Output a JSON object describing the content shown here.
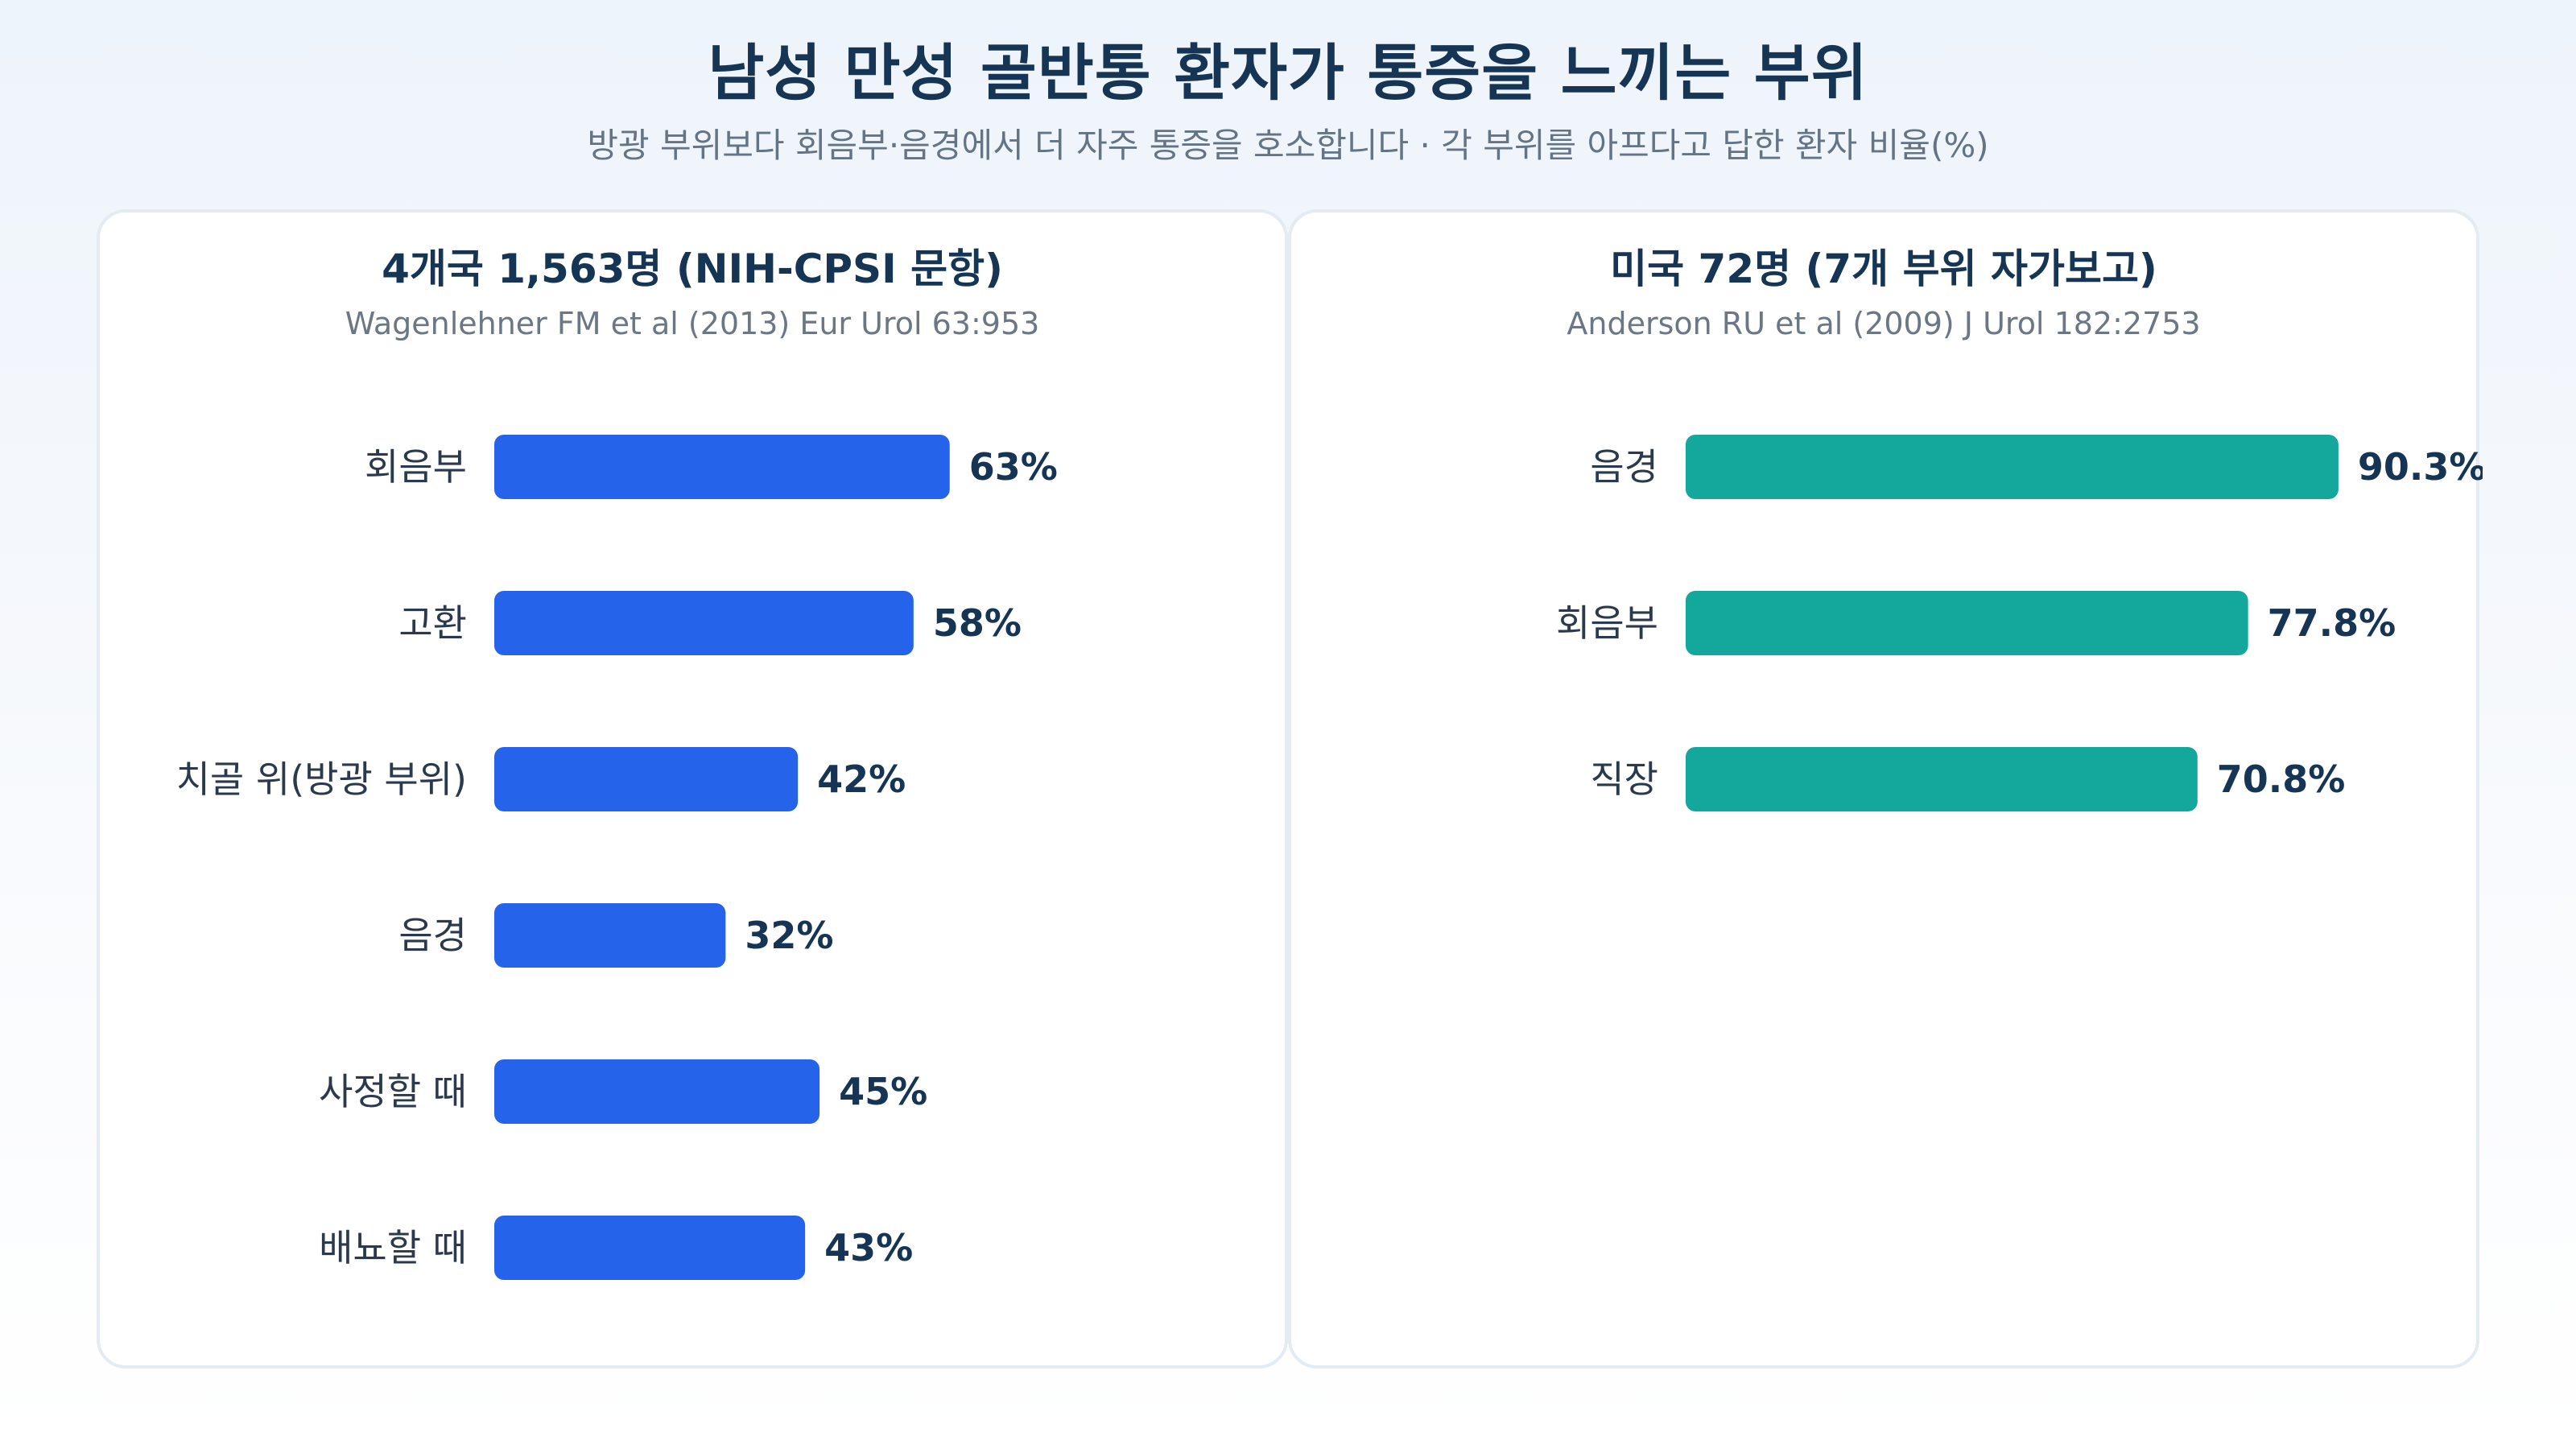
{
  "title": "남성 만성 골반통 환자가 통증을 느끼는 부위",
  "subtitle": "방광 부위보다 회음부·음경에서 더 자주 통증을 호소합니다 · 각 부위를 아프다고 답한 환자 비율(%)",
  "colors": {
    "left_bar": "#2563eb",
    "right_bar": "#14a89c"
  },
  "chart_data": [
    {
      "type": "bar",
      "orientation": "horizontal",
      "title": "4개국 1,563명 (NIH-CPSI 문항)",
      "source": "Wagenlehner FM et al (2013) Eur Urol 63:953",
      "categories": [
        "회음부",
        "고환",
        "치골 위(방광 부위)",
        "음경",
        "사정할 때",
        "배뇨할 때"
      ],
      "values": [
        63,
        58,
        42,
        32,
        45,
        43
      ],
      "value_labels": [
        "63%",
        "58%",
        "42%",
        "32%",
        "45%",
        "43%"
      ],
      "unit": "%",
      "xlim": [
        0,
        100
      ],
      "grid": false
    },
    {
      "type": "bar",
      "orientation": "horizontal",
      "title": "미국 72명 (7개 부위 자가보고)",
      "source": "Anderson RU et al (2009) J Urol 182:2753",
      "categories": [
        "음경",
        "회음부",
        "직장"
      ],
      "values": [
        90.3,
        77.8,
        70.8
      ],
      "value_labels": [
        "90.3%",
        "77.8%",
        "70.8%"
      ],
      "unit": "%",
      "xlim": [
        0,
        100
      ],
      "grid": false
    }
  ]
}
